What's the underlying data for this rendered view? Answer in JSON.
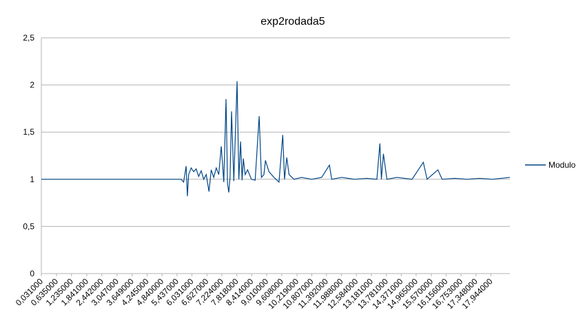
{
  "chart_data": {
    "type": "line",
    "title": "exp2rodada5",
    "x": [
      0.031,
      1,
      2,
      3,
      4,
      5,
      5.6,
      5.7,
      5.8,
      5.85,
      5.9,
      6.0,
      6.1,
      6.2,
      6.3,
      6.4,
      6.5,
      6.6,
      6.71,
      6.8,
      6.9,
      7.0,
      7.1,
      7.2,
      7.3,
      7.39,
      7.45,
      7.5,
      7.55,
      7.61,
      7.7,
      7.83,
      7.9,
      7.97,
      8.03,
      8.08,
      8.15,
      8.25,
      8.4,
      8.55,
      8.71,
      8.8,
      8.9,
      8.96,
      9.1,
      9.3,
      9.5,
      9.65,
      9.72,
      9.81,
      9.9,
      10.1,
      10.4,
      10.8,
      11.2,
      11.51,
      11.6,
      12.0,
      12.5,
      13.0,
      13.4,
      13.52,
      13.58,
      13.66,
      13.8,
      14.2,
      14.8,
      15.25,
      15.4,
      15.83,
      16.0,
      16.5,
      17.0,
      17.5,
      18.0,
      18.7
    ],
    "series": [
      {
        "name": "Modulo",
        "color": "#004586",
        "values": [
          1,
          1,
          1,
          1,
          1,
          1,
          1,
          0.97,
          1.14,
          0.82,
          1.05,
          1.12,
          1.08,
          1.11,
          1.03,
          1.09,
          1.0,
          1.05,
          0.87,
          1.1,
          1.02,
          1.12,
          1.05,
          1.35,
          0.97,
          1.85,
          0.95,
          0.86,
          1.02,
          1.72,
          0.98,
          2.04,
          1.0,
          1.4,
          0.99,
          1.22,
          1.05,
          1.1,
          1.0,
          0.99,
          1.67,
          1.02,
          1.05,
          1.2,
          1.08,
          1.02,
          0.97,
          1.47,
          1.0,
          1.23,
          1.05,
          1.0,
          1.02,
          1.0,
          1.02,
          1.15,
          1.0,
          1.02,
          1.0,
          1.01,
          1.0,
          1.38,
          1.0,
          1.27,
          1.0,
          1.02,
          1.0,
          1.18,
          1.0,
          1.1,
          1.0,
          1.01,
          1.0,
          1.01,
          1.0,
          1.02
        ]
      }
    ],
    "xlim": [
      0.031,
      18.7
    ],
    "xticks": [
      {
        "value": 0.031,
        "label": "0,031000"
      },
      {
        "value": 0.635,
        "label": "0,635000"
      },
      {
        "value": 1.235,
        "label": "1,235000"
      },
      {
        "value": 1.841,
        "label": "1,841000"
      },
      {
        "value": 2.442,
        "label": "2,442000"
      },
      {
        "value": 3.047,
        "label": "3,047000"
      },
      {
        "value": 3.649,
        "label": "3,649000"
      },
      {
        "value": 4.245,
        "label": "4,245000"
      },
      {
        "value": 4.84,
        "label": "4,840000"
      },
      {
        "value": 5.437,
        "label": "5,437000"
      },
      {
        "value": 6.031,
        "label": "6,031000"
      },
      {
        "value": 6.627,
        "label": "6,627000"
      },
      {
        "value": 7.224,
        "label": "7,224000"
      },
      {
        "value": 7.818,
        "label": "7,818000"
      },
      {
        "value": 8.414,
        "label": "8,414000"
      },
      {
        "value": 9.01,
        "label": "9,010000"
      },
      {
        "value": 9.608,
        "label": "9,608000"
      },
      {
        "value": 10.219,
        "label": "10,219000"
      },
      {
        "value": 10.807,
        "label": "10,807000"
      },
      {
        "value": 11.392,
        "label": "11,392000"
      },
      {
        "value": 11.988,
        "label": "11,988000"
      },
      {
        "value": 12.584,
        "label": "12,584000"
      },
      {
        "value": 13.181,
        "label": "13,181000"
      },
      {
        "value": 13.781,
        "label": "13,781000"
      },
      {
        "value": 14.371,
        "label": "14,371000"
      },
      {
        "value": 14.965,
        "label": "14,965000"
      },
      {
        "value": 15.57,
        "label": "15,570000"
      },
      {
        "value": 16.156,
        "label": "16,156000"
      },
      {
        "value": 16.753,
        "label": "16,753000"
      },
      {
        "value": 17.348,
        "label": "17,348000"
      },
      {
        "value": 17.944,
        "label": "17,944000"
      }
    ],
    "ylim": [
      0,
      2.5
    ],
    "yticks": [
      0,
      {
        "value": 0.5,
        "label": "0,5"
      },
      1,
      {
        "value": 1.5,
        "label": "1,5"
      },
      2,
      {
        "value": 2.5,
        "label": "2,5"
      }
    ],
    "grid": true,
    "legend": "right"
  }
}
